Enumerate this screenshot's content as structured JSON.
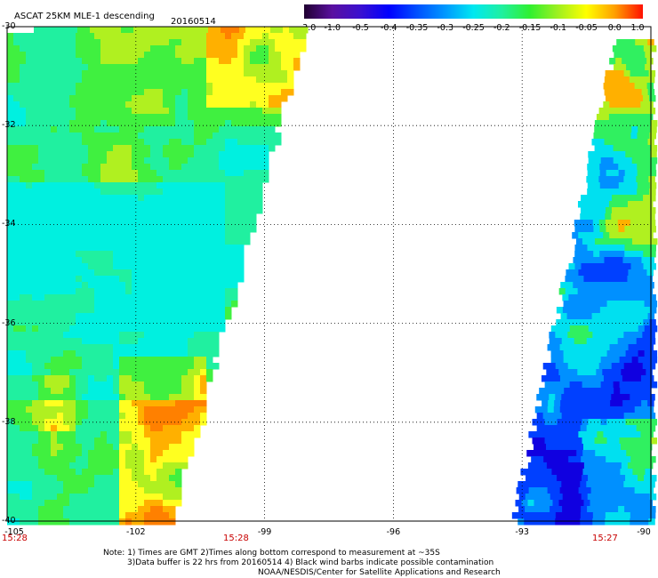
{
  "header": {
    "title": "ASCAT 25KM MLE-1 descending",
    "date": "20160514"
  },
  "colorbar": {
    "labels": [
      "-3.0",
      "-1.0",
      "-0.5",
      "-0.4",
      "-0.35",
      "-0.3",
      "-0.25",
      "-0.2",
      "-0.15",
      "-0.1",
      "-0.05",
      "0.0",
      "1.0"
    ],
    "colors": [
      "#200030",
      "#5a10a0",
      "#3a10d0",
      "#0000ff",
      "#0050ff",
      "#0098ff",
      "#00e8f0",
      "#20f0a0",
      "#30f030",
      "#a0f020",
      "#ffff00",
      "#ffa000",
      "#ff1000"
    ]
  },
  "axes": {
    "lon_labels": [
      "-105",
      "-102",
      "-99",
      "-96",
      "-93",
      "-90"
    ],
    "lon_values": [
      -105,
      -102,
      -99,
      -96,
      -93,
      -90
    ],
    "lat_labels": [
      "-30",
      "-32",
      "-34",
      "-36",
      "-38",
      "-40"
    ],
    "lat_values": [
      -30,
      -32,
      -34,
      -36,
      -38,
      -40
    ],
    "lon_range": [
      -105,
      -90
    ],
    "lat_range": [
      -40,
      -30
    ],
    "grid": "dotted"
  },
  "swaths": [
    {
      "name": "left",
      "time_label": "15:28"
    },
    {
      "name": "right",
      "time_label": "15:27"
    }
  ],
  "bottom_time_labels": [
    "15:28",
    "15:28",
    "15:27"
  ],
  "notes": {
    "line1": "Note: 1) Times are GMT 2)Times along bottom correspond to measurement at ~35S",
    "line2": "3)Data buffer is 22 hrs from 20160514 4) Black wind barbs indicate possible contamination",
    "line3": "NOAA/NESDIS/Center for Satellite Applications and Research"
  }
}
